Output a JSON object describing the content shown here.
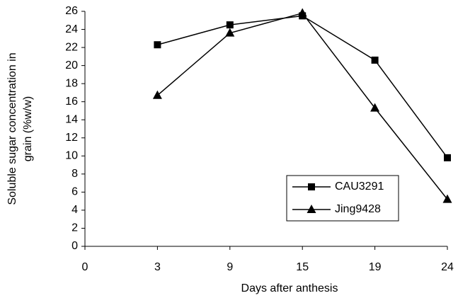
{
  "chart_data": {
    "type": "line",
    "y_label": [
      "Soluble sugar concentration in",
      "grain (%w/w)"
    ],
    "x_label": "Days after anthesis",
    "categories": [
      "0",
      "3",
      "9",
      "15",
      "19",
      "24"
    ],
    "series": [
      {
        "name": "CAU3291",
        "color": "#000000",
        "marker": "square",
        "values": [
          null,
          22.3,
          24.5,
          25.5,
          20.6,
          9.8
        ]
      },
      {
        "name": "Jing9428",
        "color": "#000000",
        "marker": "triangle",
        "values": [
          null,
          16.7,
          23.6,
          25.8,
          15.3,
          5.2
        ]
      }
    ],
    "ylim": [
      0,
      26
    ],
    "yticks": [
      0,
      2,
      4,
      6,
      8,
      10,
      12,
      14,
      16,
      18,
      20,
      22,
      24,
      26
    ],
    "grid": false,
    "legend": "lower right"
  }
}
